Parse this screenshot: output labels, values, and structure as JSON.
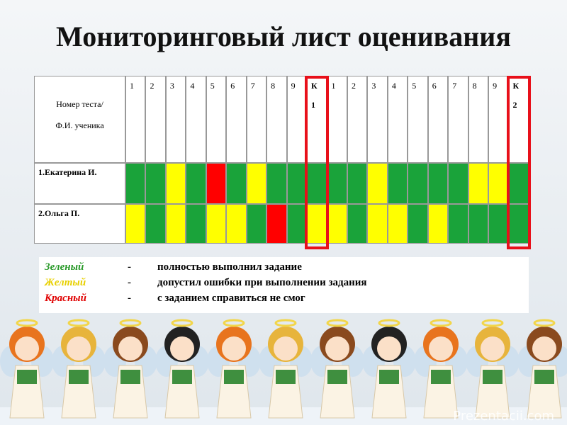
{
  "title": "Мониторинговый лист оценивания",
  "table": {
    "corner": [
      "Номер теста/",
      "Ф.И. ученика"
    ],
    "headers": [
      "1",
      "2",
      "3",
      "4",
      "5",
      "6",
      "7",
      "8",
      "9",
      [
        "К",
        "1"
      ],
      "1",
      "2",
      "3",
      "4",
      "5",
      "6",
      "7",
      "8",
      "9",
      [
        "К",
        "2"
      ]
    ],
    "highlight_color": "#e8101a",
    "rows": [
      {
        "name": "1.Екатерина И.",
        "cells": [
          "#1aa33a",
          "#1aa33a",
          "#ffff00",
          "#1aa33a",
          "#ff0000",
          "#1aa33a",
          "#ffff00",
          "#1aa33a",
          "#1aa33a",
          "#1aa33a",
          "#1aa33a",
          "#1aa33a",
          "#ffff00",
          "#1aa33a",
          "#1aa33a",
          "#1aa33a",
          "#1aa33a",
          "#ffff00",
          "#ffff00",
          "#1aa33a"
        ]
      },
      {
        "name": "2.Ольга П.",
        "cells": [
          "#ffff00",
          "#1aa33a",
          "#ffff00",
          "#1aa33a",
          "#ffff00",
          "#ffff00",
          "#1aa33a",
          "#ff0000",
          "#1aa33a",
          "#ffff00",
          "#ffff00",
          "#1aa33a",
          "#ffff00",
          "#ffff00",
          "#1aa33a",
          "#ffff00",
          "#1aa33a",
          "#1aa33a",
          "#1aa33a",
          "#1aa33a"
        ]
      }
    ]
  },
  "legend": [
    {
      "term": "Зеленый",
      "color": "#2a9a2a",
      "dash": "-",
      "text": "полностью выполнил задание"
    },
    {
      "term": "Желтый",
      "color": "#e8d000",
      "dash": "-",
      "text": "допустил ошибки при выполнении задания"
    },
    {
      "term": "Красный",
      "color": "#e00000",
      "dash": "-",
      "text": "с заданием справиться не смог"
    }
  ],
  "watermark": "Prezentacii.com"
}
